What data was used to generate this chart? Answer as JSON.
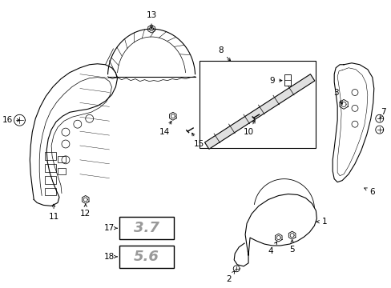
{
  "bg_color": "#ffffff",
  "line_color": "#000000",
  "figsize": [
    4.89,
    3.6
  ],
  "dpi": 100,
  "badge_37_text": "3.7",
  "badge_56_text": "5.6",
  "badge_37_color": "#888888",
  "badge_56_color": "#888888",
  "badge_37_bg": "#ffffff",
  "badge_56_bg": "#ffffff"
}
